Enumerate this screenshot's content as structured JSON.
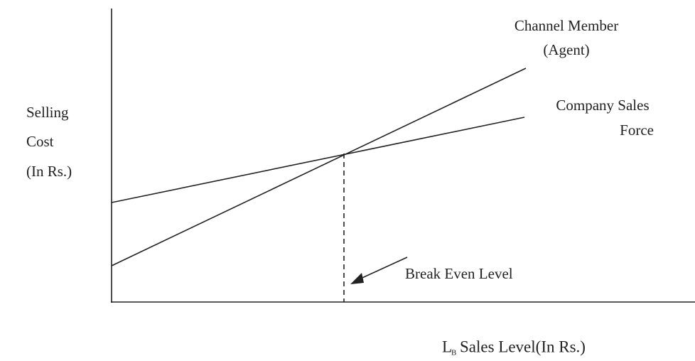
{
  "y_axis_label": [
    "Selling",
    "Cost",
    "(In Rs.)"
  ],
  "x_axis_label": {
    "symbol": "L",
    "subscript": "B",
    "text": "Sales Level(In Rs.)"
  },
  "lines": [
    {
      "label": [
        "Channel Member",
        "(Agent)"
      ]
    },
    {
      "label": [
        "Company Sales",
        "Force"
      ]
    }
  ],
  "annotation": "Break Even Level"
}
